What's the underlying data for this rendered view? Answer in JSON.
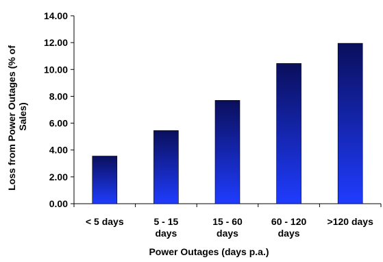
{
  "chart_data": {
    "type": "bar",
    "title": "",
    "xlabel": "Power Outages (days p.a.)",
    "ylabel_lines": [
      "Loss from Power Outages (% of",
      "Sales)"
    ],
    "categories": [
      [
        "< 5 days"
      ],
      [
        "5 - 15",
        "days"
      ],
      [
        "15 - 60",
        "days"
      ],
      [
        "60 - 120",
        "days"
      ],
      [
        ">120 days"
      ]
    ],
    "values": [
      3.55,
      5.45,
      7.7,
      10.45,
      11.95
    ],
    "ylim": [
      0,
      14
    ],
    "yticks": [
      "0.00",
      "2.00",
      "4.00",
      "6.00",
      "8.00",
      "10.00",
      "12.00",
      "14.00"
    ],
    "grid": false,
    "legend": "none",
    "colors": {
      "bar_top": "#0a0f5c",
      "bar_bottom": "#1f3cff",
      "axis": "#000000"
    }
  }
}
